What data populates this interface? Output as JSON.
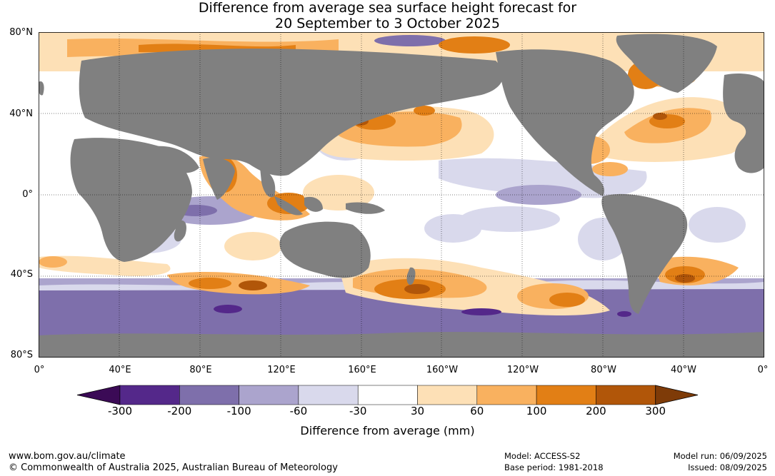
{
  "title_line1": "Difference from average sea surface height forecast for",
  "title_line2": "20 September to 3 October 2025",
  "lat_labels": [
    "80°N",
    "40°N",
    "0°",
    "40°S",
    "80°S"
  ],
  "lon_labels": [
    "0°",
    "40°E",
    "80°E",
    "120°E",
    "160°E",
    "160°W",
    "120°W",
    "80°W",
    "40°W",
    "0°"
  ],
  "colorbar": {
    "ticks": [
      "-300",
      "-200",
      "-100",
      "-60",
      "-30",
      "30",
      "60",
      "100",
      "200",
      "300"
    ],
    "colors": [
      "#3b0a56",
      "#54288a",
      "#7e6fab",
      "#aba4cd",
      "#d9d9ec",
      "#ffffff",
      "#fde0b6",
      "#f9b15f",
      "#e27f15",
      "#b15609",
      "#7e3b08"
    ],
    "label": "Difference from average (mm)"
  },
  "land_color": "#808080",
  "footer": {
    "website": "www.bom.gov.au/climate",
    "copyright": "© Commonwealth of Australia 2025, Australian Bureau of Meteorology",
    "model": "Model: ACCESS-S2",
    "base_period": "Base period: 1981-2018",
    "model_run": "Model run: 06/09/2025",
    "issued": "Issued: 08/09/2025"
  }
}
